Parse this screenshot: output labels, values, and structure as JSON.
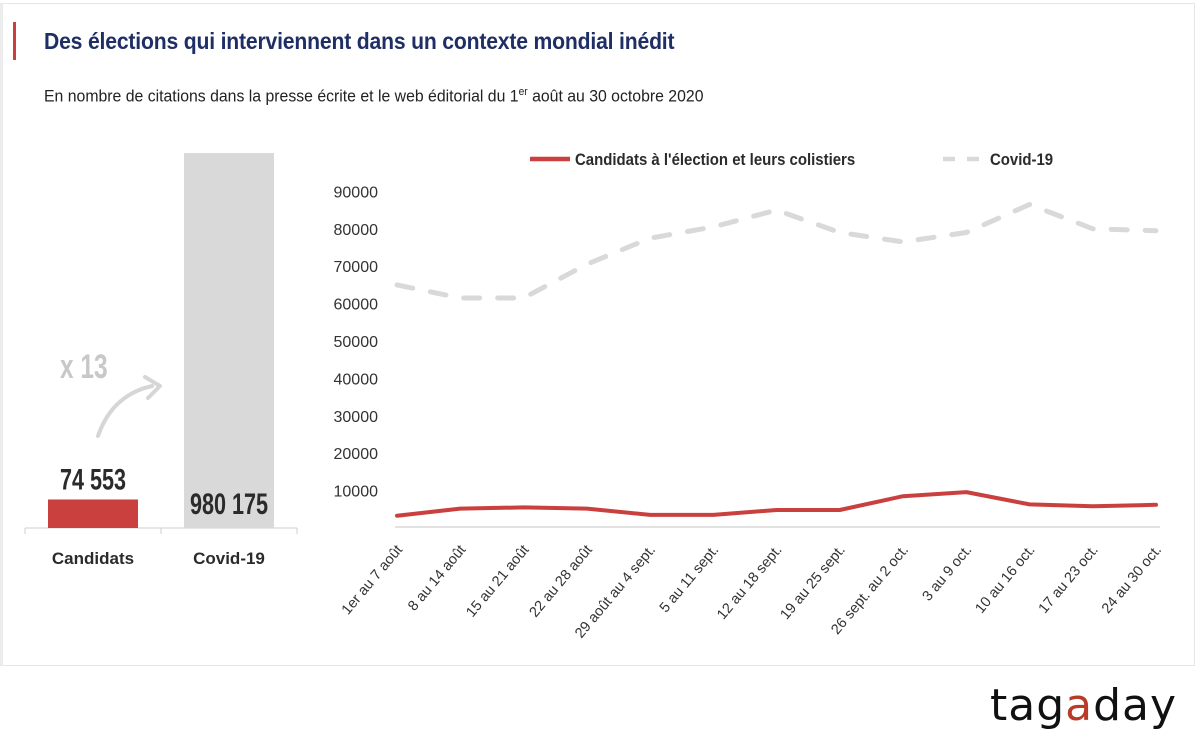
{
  "header": {
    "title": "Des élections qui interviennent dans un contexte mondial inédit",
    "subtitle_before": "En nombre de citations dans la presse écrite et le web éditorial du 1",
    "subtitle_sup": "er",
    "subtitle_after": " août au 30 octobre 2020"
  },
  "colors": {
    "title": "#1f2f66",
    "accent": "#c9403f",
    "candidats": "#c9403f",
    "covid": "#d9d9d9"
  },
  "logo": {
    "part1": "tag",
    "highlight": "a",
    "part2": "day"
  },
  "chart_data": [
    {
      "type": "bar",
      "title": "",
      "categories": [
        "Candidats",
        "Covid-19"
      ],
      "values": [
        74553,
        980175
      ],
      "value_labels": [
        "74 553",
        "980 175"
      ],
      "annotation": "x 13",
      "ylim": [
        0,
        980175
      ]
    },
    {
      "type": "line",
      "title": "",
      "xlabel": "",
      "ylabel": "",
      "ylim": [
        0,
        90000
      ],
      "yticks": [
        10000,
        20000,
        30000,
        40000,
        50000,
        60000,
        70000,
        80000,
        90000
      ],
      "grid": false,
      "legend_position": "top",
      "categories": [
        "1er au 7 août",
        "8 au 14 août",
        "15 au 21 août",
        "22 au 28 août",
        "29 août au 4 sept.",
        "5 au 11 sept.",
        "12 au 18 sept.",
        "19 au 25 sept.",
        "26 sept. au 2 oct.",
        "3 au 9 oct.",
        "10 au 16 oct.",
        "17 au 23 oct.",
        "24 au 30 oct."
      ],
      "series": [
        {
          "name": "Candidats à l'élection et leurs colistiers",
          "style": "solid",
          "values": [
            3300,
            5200,
            5500,
            5200,
            3500,
            3500,
            4800,
            4800,
            8500,
            9600,
            6300,
            5800,
            6200
          ]
        },
        {
          "name": "Covid-19",
          "style": "dashed",
          "values": [
            65000,
            61500,
            61500,
            70500,
            77500,
            80500,
            85000,
            79000,
            76500,
            79000,
            86500,
            80000,
            79500
          ]
        }
      ]
    }
  ]
}
